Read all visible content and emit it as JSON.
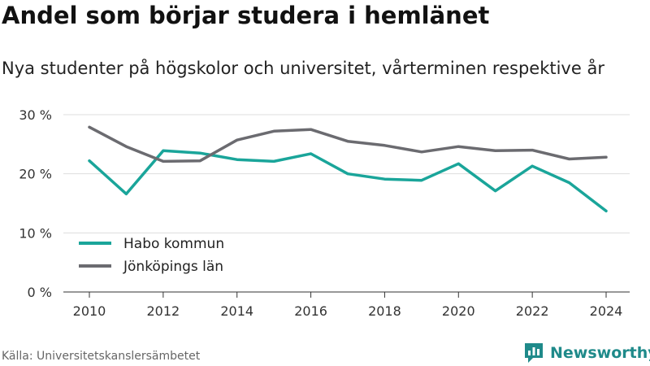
{
  "header": {
    "title": "Andel som börjar studera i hemlänet",
    "subtitle": "Nya studenter på högskolor och universitet, vårterminen respektive år"
  },
  "footer": {
    "source": "Källa: Universitetskanslersämbetet",
    "brand": "Newsworthy"
  },
  "colors": {
    "habo": "#1aa59a",
    "jonkoping": "#6b6b70",
    "grid": "#dddddd",
    "brand": "#1f8a8a"
  },
  "chart_data": {
    "type": "line",
    "x": [
      2010,
      2011,
      2012,
      2013,
      2014,
      2015,
      2016,
      2017,
      2018,
      2019,
      2020,
      2021,
      2022,
      2023,
      2024
    ],
    "xticks": [
      2010,
      2012,
      2014,
      2016,
      2018,
      2020,
      2022,
      2024
    ],
    "yticks": [
      0,
      10,
      20,
      30
    ],
    "ytick_labels": [
      "0 %",
      "10 %",
      "20 %",
      "30 %"
    ],
    "ylim": [
      0,
      30
    ],
    "grid": true,
    "legend": "bottom-left",
    "series": [
      {
        "name": "Habo kommun",
        "color": "#1aa59a",
        "values": [
          22.2,
          16.6,
          23.9,
          23.5,
          22.4,
          22.1,
          23.4,
          20.0,
          19.1,
          18.9,
          21.7,
          17.1,
          21.3,
          18.5,
          13.7
        ]
      },
      {
        "name": "Jönköpings län",
        "color": "#6b6b70",
        "values": [
          27.9,
          24.6,
          22.1,
          22.2,
          25.7,
          27.2,
          27.5,
          25.5,
          24.8,
          23.7,
          24.6,
          23.9,
          24.0,
          22.5,
          22.8
        ]
      }
    ]
  }
}
